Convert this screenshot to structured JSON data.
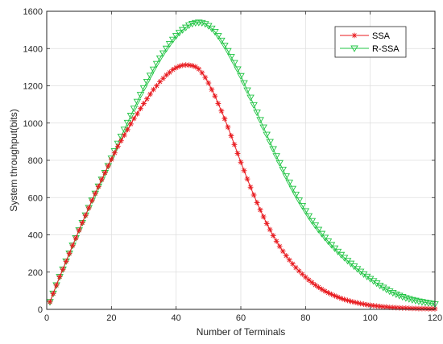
{
  "chart_data": {
    "type": "line",
    "xlabel": "Number of Terminals",
    "ylabel": "System throughput(bits)",
    "xlim": [
      0,
      120
    ],
    "ylim": [
      0,
      1600
    ],
    "xticks": [
      0,
      20,
      40,
      60,
      80,
      100,
      120
    ],
    "yticks": [
      0,
      200,
      400,
      600,
      800,
      1000,
      1200,
      1400,
      1600
    ],
    "grid": true,
    "legend_position": "top-right",
    "series": [
      {
        "name": "SSA",
        "color": "#e8191e",
        "marker": "asterisk",
        "x": [
          1,
          2,
          3,
          4,
          5,
          6,
          7,
          8,
          9,
          10,
          11,
          12,
          13,
          14,
          15,
          16,
          17,
          18,
          19,
          20,
          21,
          22,
          23,
          24,
          25,
          26,
          27,
          28,
          29,
          30,
          31,
          32,
          33,
          34,
          35,
          36,
          37,
          38,
          39,
          40,
          41,
          42,
          43,
          44,
          45,
          46,
          47,
          48,
          49,
          50,
          51,
          52,
          53,
          54,
          55,
          56,
          57,
          58,
          59,
          60,
          61,
          62,
          63,
          64,
          65,
          66,
          67,
          68,
          69,
          70,
          71,
          72,
          73,
          74,
          75,
          76,
          77,
          78,
          79,
          80,
          81,
          82,
          83,
          84,
          85,
          86,
          87,
          88,
          89,
          90,
          91,
          92,
          93,
          94,
          95,
          96,
          97,
          98,
          99,
          100,
          101,
          102,
          103,
          104,
          105,
          106,
          107,
          108,
          109,
          110,
          111,
          112,
          113,
          114,
          115,
          116,
          117,
          118,
          119,
          120
        ],
        "y": [
          40,
          85,
          130,
          175,
          215,
          258,
          300,
          343,
          383,
          425,
          465,
          505,
          545,
          585,
          622,
          660,
          697,
          733,
          770,
          805,
          840,
          875,
          905,
          935,
          965,
          995,
          1025,
          1050,
          1078,
          1105,
          1130,
          1155,
          1180,
          1200,
          1222,
          1240,
          1258,
          1272,
          1287,
          1297,
          1305,
          1310,
          1312,
          1311,
          1308,
          1302,
          1290,
          1270,
          1245,
          1215,
          1180,
          1145,
          1105,
          1065,
          1023,
          978,
          932,
          885,
          837,
          790,
          745,
          700,
          656,
          614,
          573,
          534,
          497,
          461,
          428,
          396,
          366,
          338,
          312,
          288,
          265,
          244,
          224,
          206,
          189,
          173,
          158,
          144,
          131,
          119,
          108,
          98,
          89,
          81,
          73,
          66,
          59,
          53,
          48,
          43,
          39,
          35,
          31,
          28,
          25,
          22,
          20,
          18,
          16,
          14,
          13,
          11,
          10,
          9,
          8,
          7,
          7,
          6,
          5,
          5,
          4,
          4,
          4,
          3,
          3,
          3
        ]
      },
      {
        "name": "R-SSA",
        "color": "#21c444",
        "marker": "triangle-down",
        "x": [
          1,
          2,
          3,
          4,
          5,
          6,
          7,
          8,
          9,
          10,
          11,
          12,
          13,
          14,
          15,
          16,
          17,
          18,
          19,
          20,
          21,
          22,
          23,
          24,
          25,
          26,
          27,
          28,
          29,
          30,
          31,
          32,
          33,
          34,
          35,
          36,
          37,
          38,
          39,
          40,
          41,
          42,
          43,
          44,
          45,
          46,
          47,
          48,
          49,
          50,
          51,
          52,
          53,
          54,
          55,
          56,
          57,
          58,
          59,
          60,
          61,
          62,
          63,
          64,
          65,
          66,
          67,
          68,
          69,
          70,
          71,
          72,
          73,
          74,
          75,
          76,
          77,
          78,
          79,
          80,
          81,
          82,
          83,
          84,
          85,
          86,
          87,
          88,
          89,
          90,
          91,
          92,
          93,
          94,
          95,
          96,
          97,
          98,
          99,
          100,
          101,
          102,
          103,
          104,
          105,
          106,
          107,
          108,
          109,
          110,
          111,
          112,
          113,
          114,
          115,
          116,
          117,
          118,
          119,
          120
        ],
        "y": [
          40,
          85,
          130,
          175,
          215,
          258,
          300,
          343,
          383,
          425,
          465,
          505,
          545,
          585,
          622,
          660,
          697,
          733,
          770,
          810,
          850,
          890,
          928,
          965,
          1002,
          1040,
          1078,
          1115,
          1152,
          1188,
          1222,
          1255,
          1288,
          1318,
          1348,
          1375,
          1400,
          1425,
          1448,
          1468,
          1485,
          1500,
          1513,
          1525,
          1533,
          1538,
          1540,
          1538,
          1532,
          1522,
          1508,
          1490,
          1468,
          1443,
          1416,
          1387,
          1356,
          1323,
          1289,
          1253,
          1215,
          1176,
          1137,
          1097,
          1057,
          1017,
          977,
          938,
          899,
          861,
          823,
          786,
          750,
          715,
          681,
          648,
          616,
          585,
          556,
          528,
          501,
          475,
          451,
          428,
          406,
          385,
          365,
          346,
          328,
          310,
          293,
          277,
          261,
          246,
          231,
          217,
          203,
          189,
          176,
          164,
          152,
          140,
          128,
          117,
          107,
          97,
          89,
          81,
          74,
          67,
          61,
          56,
          51,
          47,
          43,
          40,
          37,
          34,
          31,
          28
        ]
      }
    ]
  }
}
